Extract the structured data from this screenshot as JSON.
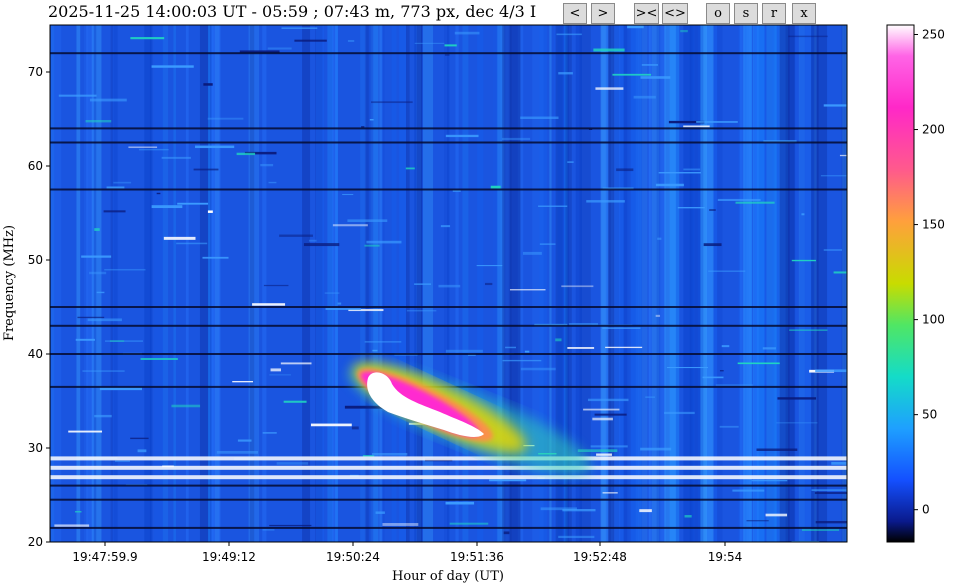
{
  "header": {
    "title": "2025-11-25 14:00:03 UT - 05:59 ; 07:43 m, 773 px, dec 4/3 I"
  },
  "toolbar": {
    "buttons": [
      {
        "name": "prev-button",
        "label": "<"
      },
      {
        "name": "next-button",
        "label": ">"
      },
      {
        "name": "zoom-in-button",
        "label": "><"
      },
      {
        "name": "zoom-out-button",
        "label": "<>"
      },
      {
        "name": "o-button",
        "label": "o"
      },
      {
        "name": "s-button",
        "label": "s"
      },
      {
        "name": "r-button",
        "label": "r"
      },
      {
        "name": "x-button",
        "label": "x"
      }
    ]
  },
  "chart_data": {
    "type": "heatmap",
    "title": "",
    "xlabel": "Hour of day (UT)",
    "ylabel": "Frequency (MHz)",
    "x_ticks": [
      "19:47:59.9",
      "19:49:12",
      "19:50:24",
      "19:51:36",
      "19:52:48",
      "19:54"
    ],
    "y_ticks": [
      20,
      30,
      40,
      50,
      60,
      70
    ],
    "ylim": [
      20,
      75
    ],
    "colorbar": {
      "ticks": [
        0,
        50,
        100,
        150,
        200,
        250
      ],
      "range": [
        -17,
        255
      ],
      "colors": [
        "#000000",
        "#0a1a8c",
        "#1450ff",
        "#1ea0ff",
        "#14dcc8",
        "#50e664",
        "#c8dc00",
        "#ffa03c",
        "#ff5a8c",
        "#ff28c8",
        "#ff64e6",
        "#ffffff"
      ]
    },
    "features": [
      {
        "type": "radio burst",
        "time_start": "19:50:24",
        "time_end": "19:52:48",
        "freq_start_mhz": 38,
        "freq_end_mhz": 30,
        "peak_intensity": 255
      }
    ],
    "interference_bands_mhz": [
      21.5,
      24.5,
      26,
      27,
      28,
      29,
      36.5,
      40,
      43,
      45,
      57.5,
      62.5,
      64,
      72
    ]
  }
}
